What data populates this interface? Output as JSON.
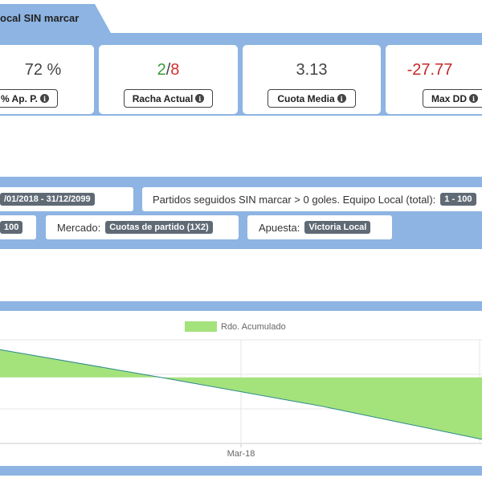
{
  "title": "ocal SIN marcar",
  "stats": [
    {
      "id": "ap",
      "value": "72 %",
      "label": "% Ap. P."
    },
    {
      "id": "racha",
      "value_green": "2",
      "value_sep": "/",
      "value_red": "8",
      "label": "Racha Actual"
    },
    {
      "id": "cuota",
      "value": "3.13",
      "label": "Cuota Media"
    },
    {
      "id": "maxdd",
      "value": "-27.77",
      "label": "Max DD"
    }
  ],
  "filters": {
    "date_range": "/01/2018 - 31/12/2099",
    "condition_text": "Partidos seguidos SIN marcar > 0 goles. Equipo Local (total):",
    "condition_value": "1 - 100",
    "range2": "100",
    "market_label": "Mercado:",
    "market_value": "Cuotas de partido (1X2)",
    "bet_label": "Apuesta:",
    "bet_value": "Victoria Local"
  },
  "icons": {
    "info": "info-icon"
  },
  "colors": {
    "band": "#8db4e2",
    "area_fill": "#a4e27c",
    "line": "#2b8a8a"
  },
  "chart_data": {
    "type": "area",
    "legend": "Rdo. Acumulado",
    "x_ticks": [
      "Mar-18"
    ],
    "series": [
      {
        "name": "Rdo. Acumulado",
        "points": [
          [
            0,
            2.5
          ],
          [
            1,
            0
          ],
          [
            2,
            -2.6
          ],
          [
            3,
            -5.6
          ]
        ]
      }
    ],
    "ylim": [
      -8,
      6
    ]
  }
}
